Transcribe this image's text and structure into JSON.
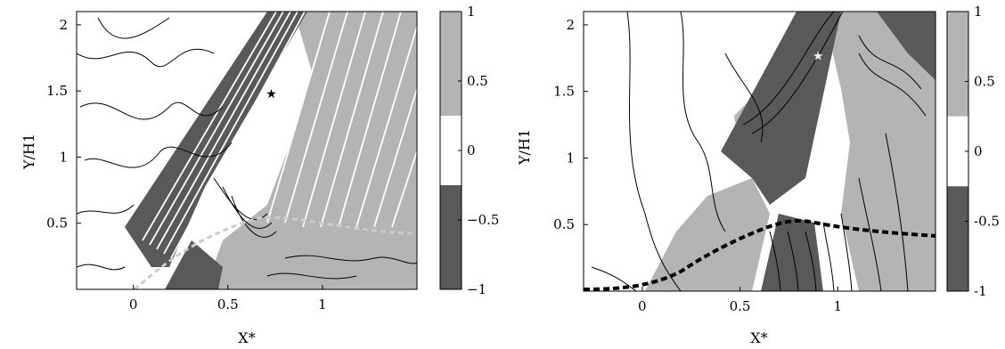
{
  "figure": {
    "panels": [
      {
        "xlabel": "X*",
        "ylabel": "Y/H1",
        "colorbar": {
          "ticks": [
            "1",
            "0.5",
            "0",
            "−0.5",
            "−1"
          ],
          "levels": [
            {
              "from": 0.5,
              "to": 1.0,
              "color": "#b4b4b4"
            },
            {
              "from": 0.25,
              "to": 0.5,
              "color": "#b4b4b4"
            },
            {
              "from": -0.25,
              "to": 0.25,
              "color": "#ffffff"
            },
            {
              "from": -0.5,
              "to": -0.25,
              "color": "#595959"
            },
            {
              "from": -1.0,
              "to": -0.5,
              "color": "#595959"
            }
          ]
        }
      },
      {
        "xlabel": "X*",
        "ylabel": "Y/H1",
        "colorbar": {
          "ticks": [
            "1",
            "0.5",
            "0",
            "-0.5",
            "-1"
          ],
          "levels": [
            {
              "from": 0.5,
              "to": 1.0,
              "color": "#b4b4b4"
            },
            {
              "from": 0.25,
              "to": 0.5,
              "color": "#b4b4b4"
            },
            {
              "from": -0.25,
              "to": 0.25,
              "color": "#ffffff"
            },
            {
              "from": -0.5,
              "to": -0.25,
              "color": "#595959"
            },
            {
              "from": -1.0,
              "to": -0.5,
              "color": "#595959"
            }
          ]
        }
      }
    ]
  },
  "chart_data": [
    {
      "type": "heatmap",
      "xlabel": "X*",
      "ylabel": "Y/H1",
      "xlim": [
        -0.3,
        1.5
      ],
      "ylim": [
        0,
        2.1
      ],
      "xticks": [
        "0",
        "0.5",
        "1"
      ],
      "yticks": [
        "0.5",
        "1",
        "1.5",
        "2"
      ],
      "zlim": [
        -1,
        1
      ],
      "zticks": [
        "1",
        "0.5",
        "0",
        "−0.5",
        "−1"
      ],
      "marker": {
        "x": 0.73,
        "y": 1.48
      },
      "curve": {
        "style": "dashed",
        "color": "#cccccc",
        "x": [
          -0.05,
          0.1,
          0.3,
          0.5,
          0.65,
          0.8,
          1.0,
          1.2,
          1.5
        ],
        "y": [
          0.0,
          0.05,
          0.18,
          0.38,
          0.52,
          0.55,
          0.52,
          0.48,
          0.45
        ]
      }
    },
    {
      "type": "heatmap",
      "xlabel": "X*",
      "ylabel": "Y/H1",
      "xlim": [
        -0.3,
        1.5
      ],
      "ylim": [
        0,
        2.1
      ],
      "xticks": [
        "0",
        "0.5",
        "1"
      ],
      "yticks": [
        "0.5",
        "1",
        "1.5",
        "2"
      ],
      "zlim": [
        -1,
        1
      ],
      "zticks": [
        "1",
        "0.5",
        "0",
        "-0.5",
        "-1"
      ],
      "marker": {
        "x": 0.9,
        "y": 1.77
      },
      "curve": {
        "style": "dashed",
        "color": "#000000",
        "x": [
          -0.3,
          -0.1,
          0.05,
          0.2,
          0.35,
          0.5,
          0.6,
          0.7,
          0.85,
          1.0,
          1.2,
          1.5
        ],
        "y": [
          0.0,
          0.0,
          0.05,
          0.15,
          0.32,
          0.45,
          0.52,
          0.55,
          0.5,
          0.46,
          0.43,
          0.4
        ]
      }
    }
  ]
}
